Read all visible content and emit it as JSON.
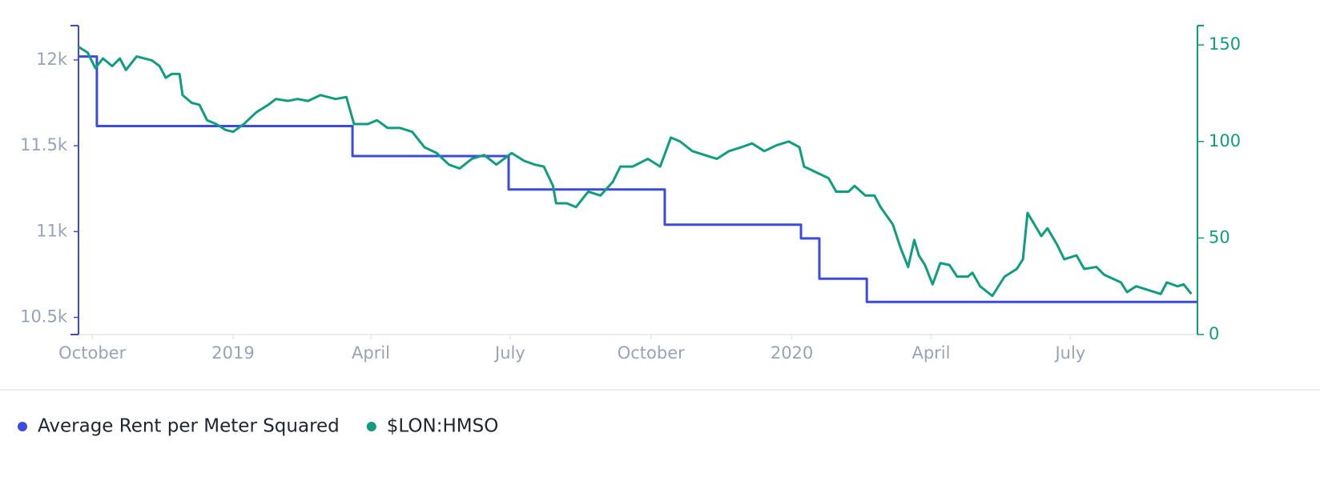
{
  "chart_data": {
    "type": "line",
    "xlim": [
      "2018-09-22",
      "2020-09-22"
    ],
    "xticks": [
      {
        "value": "2018-10-01",
        "label": "October"
      },
      {
        "value": "2019-01-01",
        "label": "2019"
      },
      {
        "value": "2019-04-01",
        "label": "April"
      },
      {
        "value": "2019-07-01",
        "label": "July"
      },
      {
        "value": "2019-10-01",
        "label": "October"
      },
      {
        "value": "2020-01-01",
        "label": "2020"
      },
      {
        "value": "2020-04-01",
        "label": "April"
      },
      {
        "value": "2020-07-01",
        "label": "July"
      }
    ],
    "ylim": [
      10400,
      12200
    ],
    "yticks": [
      {
        "value": 10500,
        "label": "10.5k"
      },
      {
        "value": 11000,
        "label": "11k"
      },
      {
        "value": 11500,
        "label": "11.5k"
      },
      {
        "value": 12000,
        "label": "12k"
      }
    ],
    "y2lim": [
      0,
      160
    ],
    "y2ticks": [
      0,
      50,
      100,
      150
    ],
    "legend": "bottom-left",
    "series": [
      {
        "name": "Average Rent per Meter Squared",
        "color": "#3d4ae0",
        "step": "after",
        "x": [
          "2018-09-22",
          "2018-10-04",
          "2019-03-20",
          "2019-06-30",
          "2019-10-10",
          "2020-01-07",
          "2020-01-19",
          "2020-02-19",
          "2020-09-22"
        ],
        "values": [
          12020,
          11615,
          11440,
          11245,
          11040,
          10960,
          10725,
          10590,
          10590
        ]
      },
      {
        "name": "$LON:HMSO",
        "color": "#0f9d80",
        "axis": "y2",
        "x": [
          "2018-09-22",
          "2018-09-28",
          "2018-10-03",
          "2018-10-08",
          "2018-10-14",
          "2018-10-19",
          "2018-10-23",
          "2018-10-30",
          "2018-11-09",
          "2018-11-14",
          "2018-11-18",
          "2018-11-22",
          "2018-11-27",
          "2018-11-29",
          "2018-12-05",
          "2018-12-10",
          "2018-12-15",
          "2018-12-21",
          "2018-12-27",
          "2019-01-01",
          "2019-01-08",
          "2019-01-16",
          "2019-01-24",
          "2019-01-29",
          "2019-02-06",
          "2019-02-12",
          "2019-02-19",
          "2019-02-27",
          "2019-03-09",
          "2019-03-16",
          "2019-03-21",
          "2019-03-30",
          "2019-04-05",
          "2019-04-12",
          "2019-04-20",
          "2019-04-28",
          "2019-05-06",
          "2019-05-14",
          "2019-05-22",
          "2019-05-29",
          "2019-06-06",
          "2019-06-14",
          "2019-06-22",
          "2019-07-02",
          "2019-07-10",
          "2019-07-17",
          "2019-07-23",
          "2019-07-29",
          "2019-07-31",
          "2019-08-07",
          "2019-08-13",
          "2019-08-21",
          "2019-08-29",
          "2019-09-06",
          "2019-09-11",
          "2019-09-19",
          "2019-09-29",
          "2019-10-07",
          "2019-10-14",
          "2019-10-20",
          "2019-10-28",
          "2019-11-05",
          "2019-11-13",
          "2019-11-21",
          "2019-11-29",
          "2019-12-06",
          "2019-12-14",
          "2019-12-22",
          "2019-12-30",
          "2020-01-06",
          "2020-01-09",
          "2020-01-17",
          "2020-01-25",
          "2020-01-30",
          "2020-02-07",
          "2020-02-11",
          "2020-02-18",
          "2020-02-24",
          "2020-02-28",
          "2020-03-07",
          "2020-03-12",
          "2020-03-17",
          "2020-03-21",
          "2020-03-24",
          "2020-03-28",
          "2020-04-02",
          "2020-04-07",
          "2020-04-13",
          "2020-04-18",
          "2020-04-25",
          "2020-04-28",
          "2020-05-03",
          "2020-05-11",
          "2020-05-19",
          "2020-05-27",
          "2020-05-31",
          "2020-06-03",
          "2020-06-06",
          "2020-06-12",
          "2020-06-16",
          "2020-06-22",
          "2020-06-27",
          "2020-07-05",
          "2020-07-10",
          "2020-07-18",
          "2020-07-23",
          "2020-08-03",
          "2020-08-07",
          "2020-08-13",
          "2020-08-29",
          "2020-09-02",
          "2020-09-09",
          "2020-09-13",
          "2020-09-18"
        ],
        "values": [
          149,
          146,
          138,
          143,
          139,
          143,
          137,
          144,
          142,
          139,
          133,
          135,
          135,
          124,
          120,
          119,
          111,
          109,
          106,
          105,
          109,
          115,
          119,
          122,
          121,
          122,
          121,
          124,
          122,
          123,
          109,
          109,
          111,
          107,
          107,
          105,
          97,
          94,
          88,
          86,
          91,
          93,
          88,
          94,
          90,
          88,
          87,
          77,
          68,
          68,
          66,
          74,
          72,
          79,
          87,
          87,
          91,
          87,
          102,
          100,
          95,
          93,
          91,
          95,
          97,
          99,
          95,
          98,
          100,
          97,
          87,
          84,
          81,
          74,
          74,
          77,
          72,
          72,
          66,
          57,
          45,
          35,
          49,
          41,
          36,
          26,
          37,
          36,
          30,
          30,
          32,
          25,
          20,
          30,
          34,
          39,
          63,
          59,
          51,
          55,
          47,
          39,
          41,
          34,
          35,
          31,
          27,
          22,
          25,
          21,
          27,
          25,
          26,
          21
        ]
      }
    ]
  }
}
